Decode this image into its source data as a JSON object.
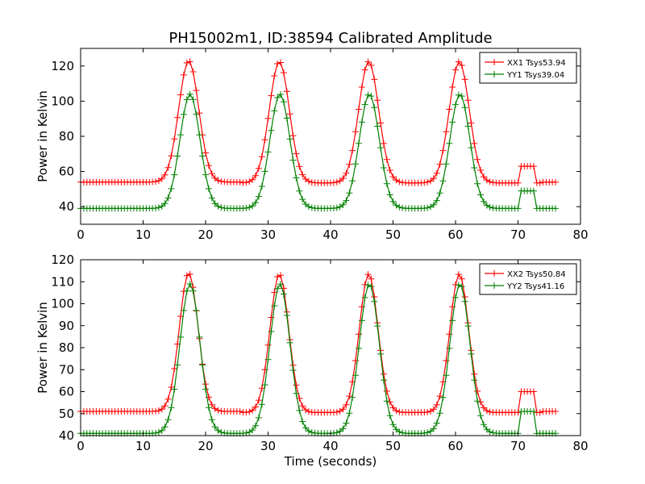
{
  "figure": {
    "title": "PH15002m1, ID:38594 Calibrated Amplitude",
    "xlabel": "Time (seconds)"
  },
  "chart_data": [
    {
      "type": "line",
      "title": "PH15002m1, ID:38594 Calibrated Amplitude",
      "xlabel": "",
      "ylabel": "Power in Kelvin",
      "xlim": [
        0,
        80
      ],
      "ylim": [
        30,
        130
      ],
      "xticks": [
        0,
        10,
        20,
        30,
        40,
        50,
        60,
        70,
        80
      ],
      "yticks": [
        40,
        60,
        80,
        100,
        120
      ],
      "legend": "top-right",
      "grid": false,
      "marker": "+",
      "x": {
        "start": 0,
        "end": 76,
        "step": 0.5
      },
      "series": [
        {
          "name": "XX1 Tsys53.94",
          "color": "#ff0000",
          "baseline": 54,
          "peaks": [
            {
              "center": 17.3,
              "height": 123,
              "sigma": 1.6
            },
            {
              "center": 31.8,
              "height": 123,
              "sigma": 1.6
            },
            {
              "center": 46.1,
              "height": 123,
              "sigma": 1.6
            },
            {
              "center": 60.6,
              "height": 123,
              "sigma": 1.6
            }
          ],
          "steps": [
            {
              "start": 70.3,
              "end": 72.5,
              "level": 63
            }
          ],
          "dips": [
            {
              "start": 26,
              "end": 73.5,
              "level": 53.5
            }
          ]
        },
        {
          "name": "YY1 Tsys39.04",
          "color": "#008000",
          "baseline": 39,
          "peaks": [
            {
              "center": 17.5,
              "height": 104,
              "sigma": 1.6
            },
            {
              "center": 31.9,
              "height": 104,
              "sigma": 1.6
            },
            {
              "center": 46.2,
              "height": 104,
              "sigma": 1.6
            },
            {
              "center": 60.7,
              "height": 104,
              "sigma": 1.6
            }
          ],
          "steps": [
            {
              "start": 70.3,
              "end": 72.5,
              "level": 49
            }
          ],
          "dips": []
        }
      ]
    },
    {
      "type": "line",
      "title": "",
      "xlabel": "Time (seconds)",
      "ylabel": "Power in Kelvin",
      "xlim": [
        0,
        80
      ],
      "ylim": [
        40,
        120
      ],
      "xticks": [
        0,
        10,
        20,
        30,
        40,
        50,
        60,
        70,
        80
      ],
      "yticks": [
        40,
        50,
        60,
        70,
        80,
        90,
        100,
        110,
        120
      ],
      "legend": "top-right",
      "grid": false,
      "marker": "+",
      "x": {
        "start": 0,
        "end": 76,
        "step": 0.5
      },
      "series": [
        {
          "name": "XX2 Tsys50.84",
          "color": "#ff0000",
          "baseline": 51,
          "peaks": [
            {
              "center": 17.3,
              "height": 114,
              "sigma": 1.5
            },
            {
              "center": 31.8,
              "height": 114,
              "sigma": 1.5
            },
            {
              "center": 46.1,
              "height": 114,
              "sigma": 1.5
            },
            {
              "center": 60.6,
              "height": 114,
              "sigma": 1.5
            }
          ],
          "steps": [
            {
              "start": 70.3,
              "end": 72.5,
              "level": 60
            }
          ],
          "dips": [
            {
              "start": 26,
              "end": 73.5,
              "level": 50.5
            }
          ]
        },
        {
          "name": "YY2 Tsys41.16",
          "color": "#008000",
          "baseline": 41,
          "peaks": [
            {
              "center": 17.5,
              "height": 109,
              "sigma": 1.6
            },
            {
              "center": 31.9,
              "height": 109,
              "sigma": 1.6
            },
            {
              "center": 46.2,
              "height": 109,
              "sigma": 1.6
            },
            {
              "center": 60.7,
              "height": 109,
              "sigma": 1.6
            }
          ],
          "steps": [
            {
              "start": 70.3,
              "end": 72.5,
              "level": 51
            }
          ],
          "dips": []
        }
      ]
    }
  ]
}
